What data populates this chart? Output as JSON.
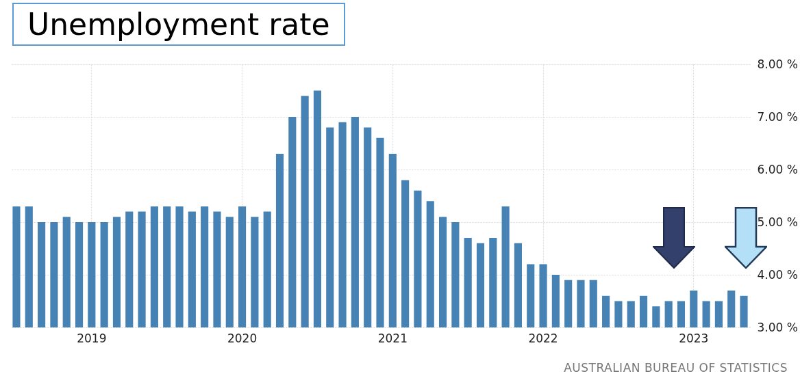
{
  "chart_data": {
    "type": "bar",
    "title": "Unemployment rate",
    "categories": [
      null,
      null,
      null,
      null,
      null,
      null,
      "2019",
      null,
      null,
      null,
      null,
      null,
      null,
      null,
      null,
      null,
      null,
      null,
      "2020",
      null,
      null,
      null,
      null,
      null,
      null,
      null,
      null,
      null,
      null,
      null,
      "2021",
      null,
      null,
      null,
      null,
      null,
      null,
      null,
      null,
      null,
      null,
      null,
      "2022",
      null,
      null,
      null,
      null,
      null,
      null,
      null,
      null,
      null,
      null,
      null,
      "2023",
      null,
      null,
      null,
      null
    ],
    "values": [
      5.3,
      5.3,
      5.0,
      5.0,
      5.1,
      5.0,
      5.0,
      5.0,
      5.1,
      5.2,
      5.2,
      5.3,
      5.3,
      5.3,
      5.2,
      5.3,
      5.2,
      5.1,
      5.3,
      5.1,
      5.2,
      6.3,
      7.0,
      7.4,
      7.5,
      6.8,
      6.9,
      7.0,
      6.8,
      6.6,
      6.3,
      5.8,
      5.6,
      5.4,
      5.1,
      5.0,
      4.7,
      4.6,
      4.7,
      5.3,
      4.6,
      4.2,
      4.2,
      4.0,
      3.9,
      3.9,
      3.9,
      3.6,
      3.5,
      3.5,
      3.6,
      3.4,
      3.5,
      3.5,
      3.7,
      3.5,
      3.5,
      3.7,
      3.6
    ],
    "color": "#4682b4",
    "ylim": [
      3,
      8
    ],
    "yticks": [
      {
        "value": 3,
        "label": "3.00 %"
      },
      {
        "value": 4,
        "label": "4.00 %"
      },
      {
        "value": 5,
        "label": "5.00 %"
      },
      {
        "value": 6,
        "label": "6.00 %"
      },
      {
        "value": 7,
        "label": "7.00 %"
      },
      {
        "value": 8,
        "label": "8.00 %"
      }
    ],
    "grid": true,
    "annotations": [
      "AUSTRALIAN BUREAU OF STATISTICS"
    ]
  }
}
